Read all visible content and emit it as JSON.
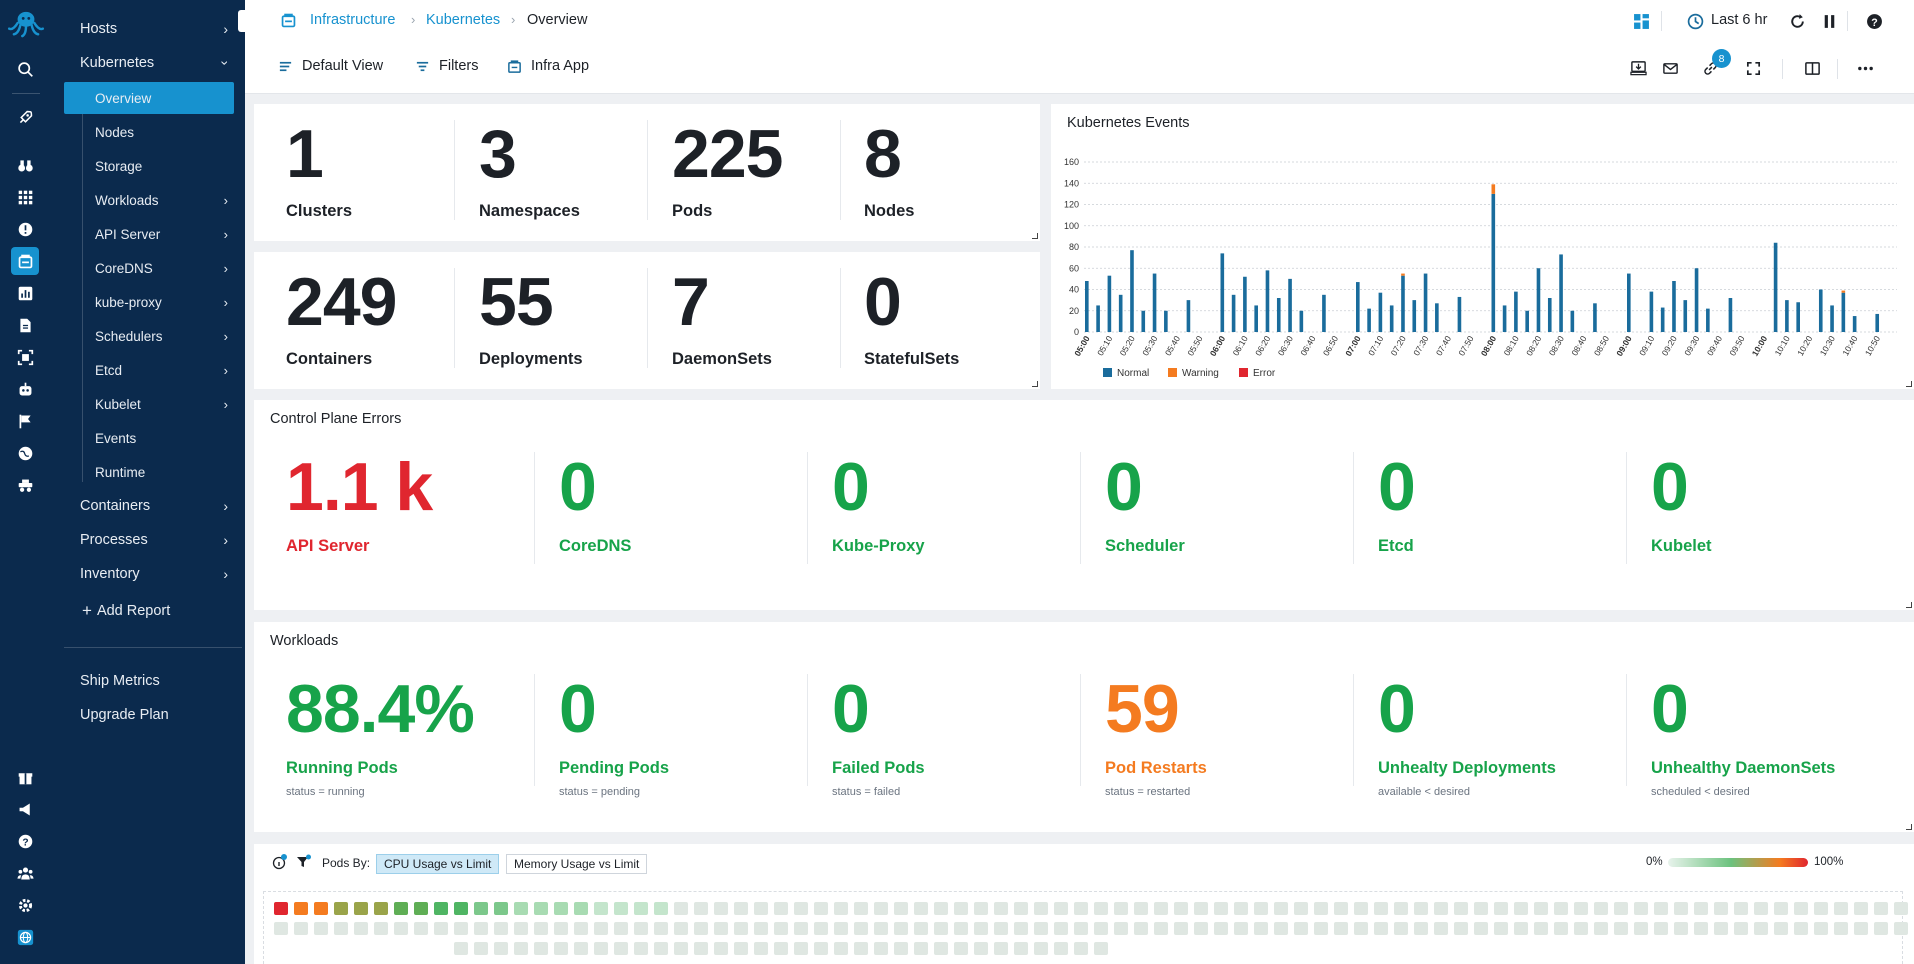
{
  "breadcrumb": [
    "Infrastructure",
    "Kubernetes",
    "Overview"
  ],
  "toolbar": {
    "default_view": "Default View",
    "filters": "Filters",
    "infra_app": "Infra App",
    "time_range": "Last 6 hr",
    "links_badge": "8"
  },
  "nav": {
    "hosts": "Hosts",
    "kubernetes": "Kubernetes",
    "sub": [
      "Overview",
      "Nodes",
      "Storage",
      "Workloads",
      "API Server",
      "CoreDNS",
      "kube-proxy",
      "Schedulers",
      "Etcd",
      "Kubelet",
      "Events",
      "Runtime"
    ],
    "containers": "Containers",
    "processes": "Processes",
    "inventory": "Inventory",
    "add_report": "Add Report",
    "ship_metrics": "Ship Metrics",
    "upgrade_plan": "Upgrade Plan"
  },
  "counts": [
    {
      "value": "1",
      "label": "Clusters"
    },
    {
      "value": "3",
      "label": "Namespaces"
    },
    {
      "value": "225",
      "label": "Pods"
    },
    {
      "value": "8",
      "label": "Nodes"
    },
    {
      "value": "249",
      "label": "Containers"
    },
    {
      "value": "55",
      "label": "Deployments"
    },
    {
      "value": "7",
      "label": "DaemonSets"
    },
    {
      "value": "0",
      "label": "StatefulSets"
    }
  ],
  "control_plane": {
    "title": "Control Plane Errors",
    "items": [
      {
        "value": "1.1 k",
        "label": "API Server",
        "status": "error"
      },
      {
        "value": "0",
        "label": "CoreDNS",
        "status": "ok"
      },
      {
        "value": "0",
        "label": "Kube-Proxy",
        "status": "ok"
      },
      {
        "value": "0",
        "label": "Scheduler",
        "status": "ok"
      },
      {
        "value": "0",
        "label": "Etcd",
        "status": "ok"
      },
      {
        "value": "0",
        "label": "Kubelet",
        "status": "ok"
      }
    ]
  },
  "workloads": {
    "title": "Workloads",
    "items": [
      {
        "value": "88.4%",
        "label": "Running Pods",
        "sub": "status = running",
        "status": "ok"
      },
      {
        "value": "0",
        "label": "Pending Pods",
        "sub": "status = pending",
        "status": "ok"
      },
      {
        "value": "0",
        "label": "Failed Pods",
        "sub": "status = failed",
        "status": "ok"
      },
      {
        "value": "59",
        "label": "Pod Restarts",
        "sub": "status = restarted",
        "status": "warn"
      },
      {
        "value": "0",
        "label": "Unhealty Deployments",
        "sub": "available < desired",
        "status": "ok"
      },
      {
        "value": "0",
        "label": "Unhealthy DaemonSets",
        "sub": "scheduled < desired",
        "status": "ok"
      }
    ]
  },
  "heatmap": {
    "pods_by_label": "Pods By:",
    "tab_cpu": "CPU Usage vs Limit",
    "tab_memory": "Memory Usage vs Limit",
    "legend_min": "0%",
    "legend_max": "100%",
    "cells": 197,
    "hot_cells": [
      1.0,
      0.85,
      0.8,
      0.7,
      0.65,
      0.6,
      0.55,
      0.5,
      0.45,
      0.4,
      0.35,
      0.3,
      0.28,
      0.25,
      0.22,
      0.2,
      0.18,
      0.16,
      0.15,
      0.14
    ]
  },
  "colors": {
    "accent": "#1792cf",
    "nav_bg": "#0b2a4d",
    "ok": "#17a34a",
    "error": "#e0262f",
    "warn": "#f47b20",
    "normal": "#1a6c9c"
  },
  "chart_data": {
    "type": "bar",
    "title": "Kubernetes Events",
    "stacked": true,
    "ylim": [
      0,
      160
    ],
    "yticks": [
      0,
      20,
      40,
      60,
      80,
      100,
      120,
      140,
      160
    ],
    "grid": true,
    "legend_position": "bottom-left",
    "x_tick_labels": [
      "05:00",
      "05:10",
      "05:20",
      "05:30",
      "05:40",
      "05:50",
      "06:00",
      "06:10",
      "06:20",
      "06:30",
      "06:40",
      "06:50",
      "07:00",
      "07:10",
      "07:20",
      "07:30",
      "07:40",
      "07:50",
      "08:00",
      "08:10",
      "08:20",
      "08:30",
      "08:40",
      "08:50",
      "09:00",
      "09:10",
      "09:20",
      "09:30",
      "09:40",
      "09:50",
      "10:00",
      "10:10",
      "10:20",
      "10:30",
      "10:40",
      "10:50"
    ],
    "series": [
      {
        "name": "Normal",
        "color": "#1a6c9c",
        "values": [
          48,
          25,
          53,
          35,
          77,
          20,
          55,
          20,
          0,
          30,
          0,
          0,
          74,
          35,
          52,
          25,
          58,
          32,
          50,
          20,
          0,
          35,
          0,
          0,
          47,
          22,
          37,
          25,
          53,
          30,
          55,
          27,
          0,
          33,
          0,
          0,
          130,
          25,
          38,
          20,
          60,
          32,
          73,
          20,
          0,
          27,
          0,
          0,
          55,
          0,
          38,
          23,
          48,
          30,
          60,
          22,
          0,
          32,
          0,
          0,
          0,
          84,
          30,
          28,
          0,
          40,
          25,
          37,
          15,
          0,
          17,
          0
        ]
      },
      {
        "name": "Warning",
        "color": "#f47b20",
        "values": [
          0,
          0,
          0,
          0,
          0,
          0,
          0,
          0,
          0,
          0,
          0,
          0,
          0,
          0,
          0,
          0,
          0,
          0,
          0,
          0,
          0,
          0,
          0,
          0,
          0,
          0,
          0,
          0,
          2,
          0,
          0,
          0,
          0,
          0,
          0,
          0,
          9,
          0,
          0,
          0,
          0,
          0,
          0,
          0,
          0,
          0,
          0,
          0,
          0,
          0,
          0,
          0,
          0,
          0,
          0,
          0,
          0,
          0,
          0,
          0,
          0,
          0,
          0,
          0,
          0,
          0,
          0,
          2,
          0,
          0,
          0,
          0
        ]
      },
      {
        "name": "Error",
        "color": "#e0262f",
        "values": [
          0,
          0,
          0,
          0,
          0,
          0,
          0,
          0,
          0,
          0,
          0,
          0,
          0,
          0,
          0,
          0,
          0,
          0,
          0,
          0,
          0,
          0,
          0,
          0,
          0,
          0,
          0,
          0,
          0,
          0,
          0,
          0,
          0,
          0,
          0,
          0,
          0,
          0,
          0,
          0,
          0,
          0,
          0,
          0,
          0,
          0,
          0,
          0,
          0,
          0,
          0,
          0,
          0,
          0,
          0,
          0,
          0,
          0,
          0,
          0,
          0,
          0,
          0,
          0,
          0,
          0,
          0,
          0,
          0,
          0,
          0,
          0
        ]
      }
    ]
  }
}
